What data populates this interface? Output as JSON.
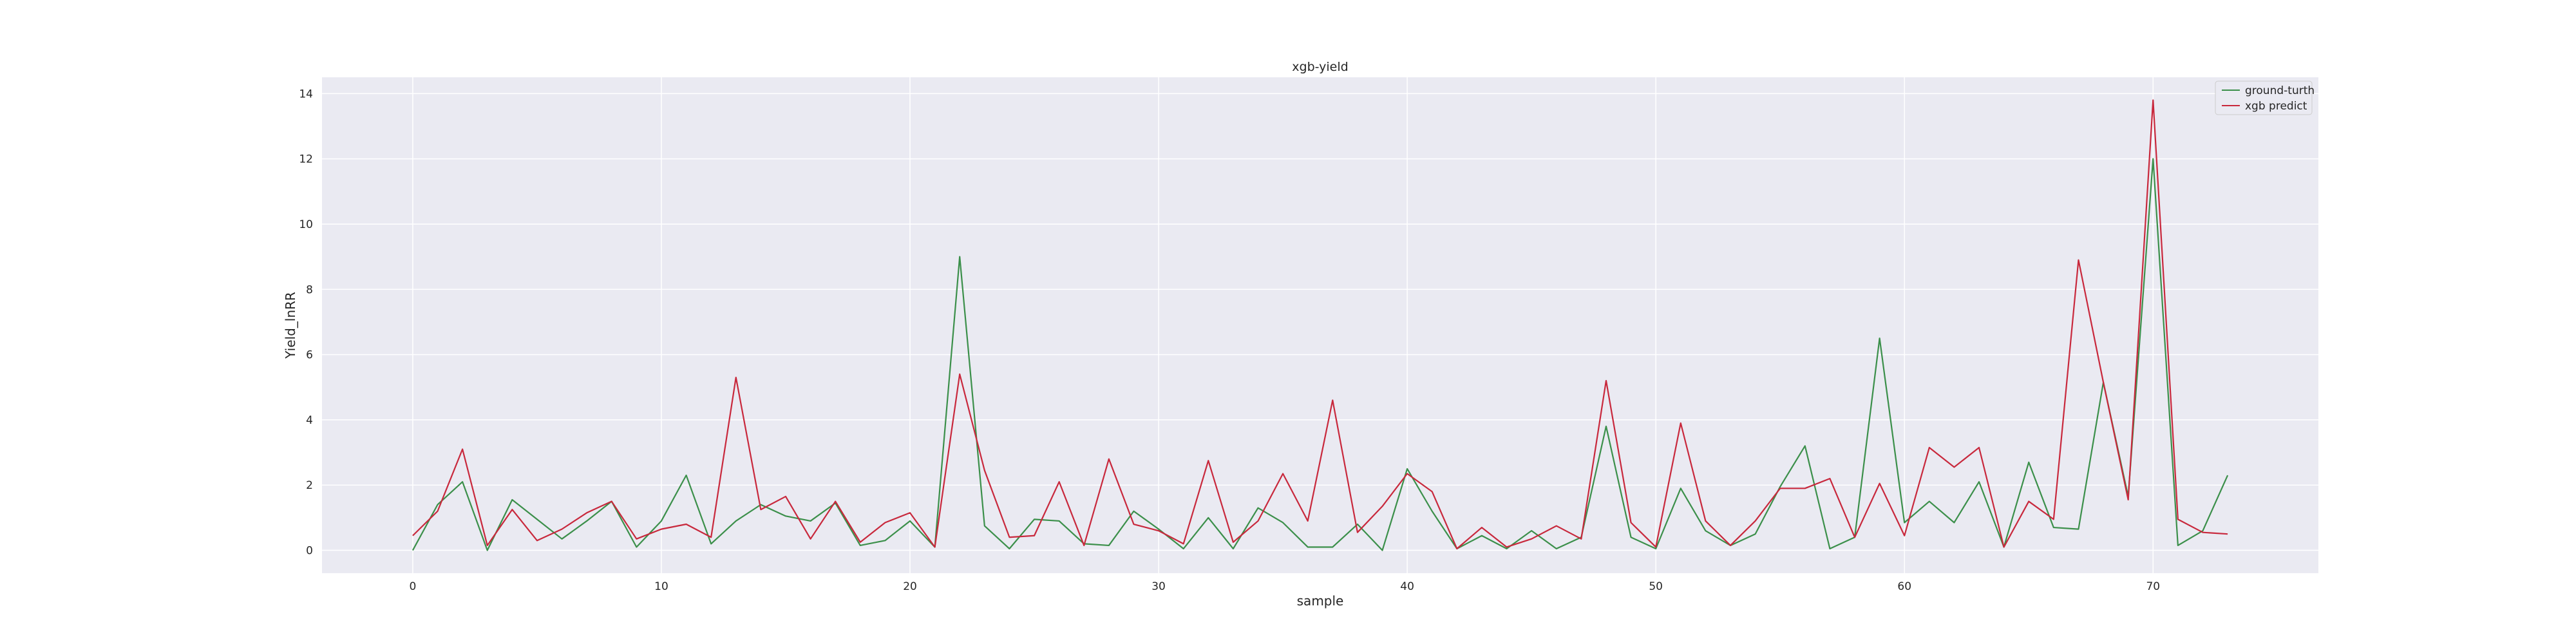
{
  "chart_data": {
    "type": "line",
    "title": "xgb-yield",
    "xlabel": "sample",
    "ylabel": "Yield_lnRR",
    "xlim": [
      -3.65,
      76.65
    ],
    "ylim": [
      -0.7,
      14.5
    ],
    "xticks": [
      "0",
      "10",
      "20",
      "30",
      "40",
      "50",
      "60",
      "70"
    ],
    "yticks": [
      "0",
      "2",
      "4",
      "6",
      "8",
      "10",
      "12",
      "14"
    ],
    "grid": true,
    "legend_position": "top-right",
    "x": [
      0,
      1,
      2,
      3,
      4,
      5,
      6,
      7,
      8,
      9,
      10,
      11,
      12,
      13,
      14,
      15,
      16,
      17,
      18,
      19,
      20,
      21,
      22,
      23,
      24,
      25,
      26,
      27,
      28,
      29,
      30,
      31,
      32,
      33,
      34,
      35,
      36,
      37,
      38,
      39,
      40,
      41,
      42,
      43,
      44,
      45,
      46,
      47,
      48,
      49,
      50,
      51,
      52,
      53,
      54,
      55,
      56,
      57,
      58,
      59,
      60,
      61,
      62,
      63,
      64,
      65,
      66,
      67,
      68,
      69,
      70,
      71,
      72,
      73
    ],
    "series": [
      {
        "name": "ground-turth",
        "color": "#3b8f4a",
        "values": [
          0.0,
          1.4,
          2.1,
          0.0,
          1.55,
          0.95,
          0.35,
          0.9,
          1.5,
          0.1,
          0.9,
          2.3,
          0.2,
          0.9,
          1.4,
          1.05,
          0.9,
          1.45,
          0.15,
          0.3,
          0.9,
          0.1,
          9.0,
          0.75,
          0.05,
          0.95,
          0.9,
          0.2,
          0.15,
          1.2,
          0.65,
          0.05,
          1.0,
          0.05,
          1.3,
          0.85,
          0.1,
          0.1,
          0.8,
          0.0,
          2.5,
          1.2,
          0.05,
          0.45,
          0.05,
          0.6,
          0.05,
          0.4,
          3.8,
          0.4,
          0.05,
          1.9,
          0.6,
          0.15,
          0.5,
          1.95,
          3.2,
          0.05,
          0.4,
          6.5,
          0.85,
          1.5,
          0.85,
          2.1,
          0.1,
          2.7,
          0.7,
          0.65,
          5.15,
          1.65,
          12.0,
          0.15,
          0.6,
          2.3
        ]
      },
      {
        "name": "xgb predict",
        "color": "#c8283c",
        "values": [
          0.45,
          1.2,
          3.1,
          0.15,
          1.25,
          0.3,
          0.65,
          1.15,
          1.5,
          0.35,
          0.65,
          0.8,
          0.4,
          5.3,
          1.25,
          1.65,
          0.35,
          1.5,
          0.25,
          0.85,
          1.15,
          0.1,
          5.4,
          2.45,
          0.4,
          0.45,
          2.1,
          0.15,
          2.8,
          0.8,
          0.6,
          0.2,
          2.75,
          0.25,
          0.9,
          2.35,
          0.9,
          4.6,
          0.55,
          1.35,
          2.35,
          1.8,
          0.05,
          0.7,
          0.1,
          0.35,
          0.75,
          0.35,
          5.2,
          0.85,
          0.1,
          3.9,
          0.9,
          0.15,
          0.9,
          1.9,
          1.9,
          2.2,
          0.4,
          2.05,
          0.45,
          3.15,
          2.55,
          3.15,
          0.1,
          1.5,
          0.95,
          8.9,
          5.15,
          1.55,
          13.8,
          0.95,
          0.55,
          0.5
        ]
      }
    ]
  }
}
